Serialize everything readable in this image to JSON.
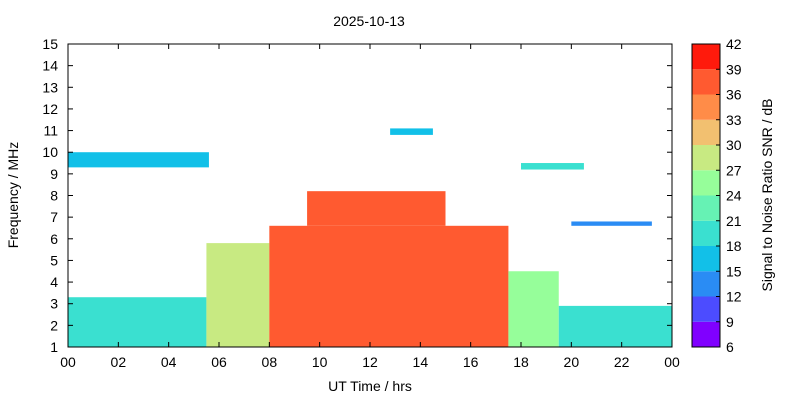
{
  "chart_data": {
    "type": "heatmap",
    "title": "2025-10-13",
    "xlabel": "UT Time / hrs",
    "ylabel": "Frequency / MHz",
    "colorbar_label": "Signal to Noise Ratio SNR / dB",
    "xlim": [
      0,
      24
    ],
    "ylim": [
      1,
      15
    ],
    "x_ticks": [
      "00",
      "02",
      "04",
      "06",
      "08",
      "10",
      "12",
      "14",
      "16",
      "18",
      "20",
      "22",
      "00"
    ],
    "y_ticks": [
      "1",
      "2",
      "3",
      "4",
      "5",
      "6",
      "7",
      "8",
      "9",
      "10",
      "11",
      "12",
      "13",
      "14",
      "15"
    ],
    "colorbar": {
      "ticks": [
        "6",
        "9",
        "12",
        "15",
        "18",
        "21",
        "24",
        "27",
        "30",
        "33",
        "36",
        "39",
        "42"
      ],
      "bins": [
        {
          "min": 6,
          "max": 9,
          "color": "#8000ff"
        },
        {
          "min": 9,
          "max": 12,
          "color": "#4c4cff"
        },
        {
          "min": 12,
          "max": 15,
          "color": "#2a8cf4"
        },
        {
          "min": 15,
          "max": 18,
          "color": "#12c0e8"
        },
        {
          "min": 18,
          "max": 21,
          "color": "#3ae0d0"
        },
        {
          "min": 21,
          "max": 24,
          "color": "#66f2b4"
        },
        {
          "min": 24,
          "max": 27,
          "color": "#96fe9a"
        },
        {
          "min": 27,
          "max": 30,
          "color": "#c8ea82"
        },
        {
          "min": 30,
          "max": 33,
          "color": "#f2c070"
        },
        {
          "min": 33,
          "max": 36,
          "color": "#ff8c48"
        },
        {
          "min": 36,
          "max": 39,
          "color": "#ff5a30"
        },
        {
          "min": 39,
          "max": 42,
          "color": "#ff1a0c"
        }
      ]
    },
    "regions": [
      {
        "x": [
          0,
          5.5
        ],
        "y": [
          1.0,
          3.3
        ],
        "snr": 19
      },
      {
        "x": [
          0,
          5.6
        ],
        "y": [
          9.3,
          10.0
        ],
        "snr": 17
      },
      {
        "x": [
          5.5,
          8.0
        ],
        "y": [
          1.0,
          5.8
        ],
        "snr": 28
      },
      {
        "x": [
          8.0,
          17.5
        ],
        "y": [
          1.0,
          6.6
        ],
        "snr": 36
      },
      {
        "x": [
          9.5,
          15.0
        ],
        "y": [
          6.6,
          8.2
        ],
        "snr": 38
      },
      {
        "x": [
          17.5,
          19.5
        ],
        "y": [
          1.0,
          4.5
        ],
        "snr": 26
      },
      {
        "x": [
          19.5,
          24.0
        ],
        "y": [
          1.0,
          2.9
        ],
        "snr": 20
      },
      {
        "x": [
          20.0,
          23.2
        ],
        "y": [
          6.6,
          6.8
        ],
        "snr": 14
      },
      {
        "x": [
          18.0,
          20.5
        ],
        "y": [
          9.2,
          9.5
        ],
        "snr": 19
      },
      {
        "x": [
          12.8,
          14.5
        ],
        "y": [
          10.8,
          11.1
        ],
        "snr": 16
      }
    ]
  }
}
